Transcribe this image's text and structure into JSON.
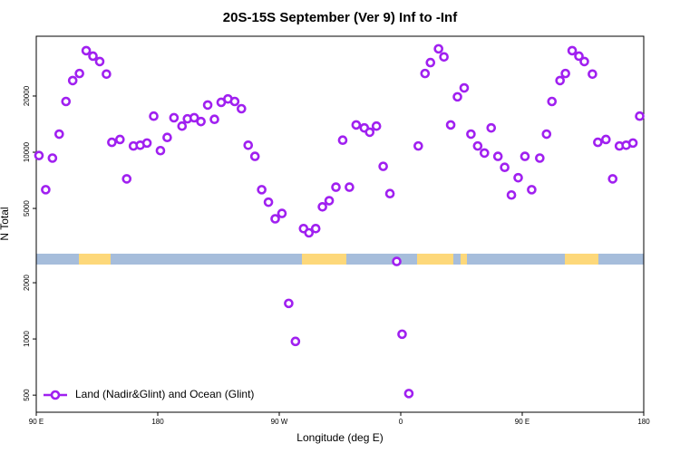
{
  "chart_data": {
    "type": "scatter",
    "title": "20S-15S September (Ver 9)   Inf to -Inf",
    "x_label": "Longitude (deg E)",
    "y_label": "N Total",
    "xlim": [
      90,
      540
    ],
    "xticks": [
      {
        "value": 90,
        "label": "90 E"
      },
      {
        "value": 180,
        "label": "180"
      },
      {
        "value": 270,
        "label": "90 W"
      },
      {
        "value": 360,
        "label": "0"
      },
      {
        "value": 450,
        "label": "90 E"
      },
      {
        "value": 540,
        "label": "180"
      }
    ],
    "ylim": [
      405,
      41800
    ],
    "yticks": [
      500,
      1000,
      2000,
      5000,
      10000,
      20000
    ],
    "ylog": true,
    "legend": "lower left",
    "series": [
      {
        "name": "Land (Nadir&Glint) and Ocean (Glint)",
        "color": "#a020f0",
        "x": [
          92,
          97,
          102,
          107,
          112,
          117,
          122,
          127,
          132,
          137,
          142,
          146,
          152,
          157,
          162,
          167,
          172,
          177,
          182,
          187,
          192,
          198,
          202,
          207,
          212,
          217,
          222,
          227,
          232,
          237,
          242,
          247,
          252,
          257,
          262,
          267,
          272,
          277,
          282,
          288,
          292,
          297,
          302,
          307,
          312,
          317,
          322,
          327,
          333,
          337,
          342,
          347,
          352,
          357,
          361,
          366,
          373,
          378,
          382,
          388,
          392,
          397,
          402,
          407,
          412,
          417,
          422,
          427,
          432,
          437,
          442,
          447,
          452,
          457,
          463,
          468,
          472,
          478,
          482,
          487,
          492,
          496,
          502,
          506,
          512,
          517,
          522,
          527,
          532,
          537
        ],
        "values": [
          9600,
          6300,
          9300,
          12500,
          18700,
          24200,
          26400,
          35000,
          32700,
          30600,
          26200,
          11300,
          11700,
          7200,
          10800,
          10900,
          11200,
          15600,
          10200,
          12000,
          15300,
          13800,
          15100,
          15300,
          14600,
          17900,
          15000,
          18500,
          19300,
          18700,
          17100,
          10900,
          9500,
          6300,
          5400,
          4400,
          4700,
          1550,
          970,
          3900,
          3700,
          3900,
          5100,
          5500,
          6500,
          11600,
          6500,
          14000,
          13500,
          12800,
          13800,
          8400,
          6000,
          2600,
          1060,
          510,
          10800,
          26400,
          30200,
          35800,
          32400,
          14000,
          19800,
          22100,
          12500,
          10800,
          9900,
          13500,
          9500,
          8300,
          5900,
          7300,
          9500,
          6300,
          9300,
          12500,
          18700,
          24200,
          26400,
          35000,
          32700,
          30600,
          26200,
          11300,
          11700,
          7200,
          10800,
          10900,
          11200,
          15600
        ]
      }
    ]
  }
}
